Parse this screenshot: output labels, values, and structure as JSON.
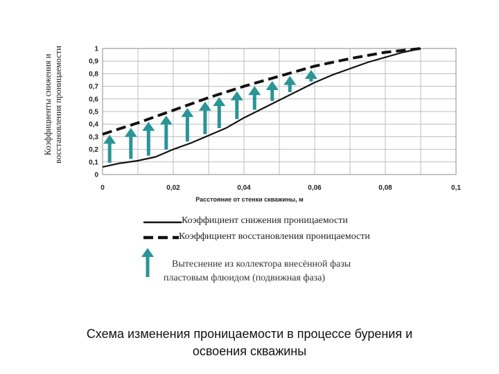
{
  "chart_data": {
    "type": "line",
    "title": "",
    "ylabel": [
      "Коэффициенты снижения и",
      "восстановления проницаемости"
    ],
    "xlabel": "Расстояние от стенки скважины, м",
    "xlim": [
      0,
      0.1
    ],
    "ylim": [
      0,
      1
    ],
    "x_ticks": [
      "0",
      "0,02",
      "0,04",
      "0,06",
      "0,08",
      "0,1"
    ],
    "y_ticks": [
      "0",
      "0,1",
      "0,2",
      "0,3",
      "0,4",
      "0,5",
      "0,6",
      "0,7",
      "0,8",
      "0,9",
      "1"
    ],
    "grid": true,
    "series": [
      {
        "name": "Коэффициент снижения проницаемости",
        "style": "solid",
        "x": [
          0,
          0.005,
          0.01,
          0.015,
          0.02,
          0.025,
          0.03,
          0.035,
          0.04,
          0.045,
          0.05,
          0.055,
          0.06,
          0.065,
          0.07,
          0.075,
          0.08,
          0.085,
          0.09
        ],
        "y": [
          0.06,
          0.09,
          0.11,
          0.14,
          0.2,
          0.25,
          0.31,
          0.37,
          0.45,
          0.52,
          0.59,
          0.66,
          0.73,
          0.79,
          0.84,
          0.89,
          0.93,
          0.97,
          1.0
        ]
      },
      {
        "name": "Коэффициент восстановления проницаемости",
        "style": "dashed",
        "x": [
          0,
          0.01,
          0.02,
          0.03,
          0.04,
          0.05,
          0.06,
          0.07,
          0.08,
          0.09
        ],
        "y": [
          0.32,
          0.41,
          0.51,
          0.61,
          0.7,
          0.78,
          0.86,
          0.92,
          0.97,
          1.0
        ]
      }
    ],
    "arrows": {
      "name": "Вытеснение из коллектора внесённой фазы пластовым флюидом (подвижная фаза)",
      "x": [
        0.002,
        0.008,
        0.013,
        0.018,
        0.024,
        0.029,
        0.033,
        0.038,
        0.043,
        0.048,
        0.053,
        0.059
      ]
    },
    "legend": [
      {
        "label": "Коэффициент снижения проницаемости",
        "marker": "solid-line"
      },
      {
        "label": "Коэффициент восстановления проницаемости",
        "marker": "dashed-line"
      },
      {
        "label_lines": [
          "Вытеснение из коллектора внесённой фазы",
          "пластовым флюидом (подвижная фаза)"
        ],
        "marker": "teal-arrow"
      }
    ],
    "legend_placement": "bottom",
    "colors": {
      "arrow": "#2a9496",
      "grid": "#bdbdbd",
      "lines": "#111111"
    }
  },
  "caption": {
    "line1": "Схема изменения проницаемости в процессе бурения и",
    "line2": "освоения скважины"
  }
}
